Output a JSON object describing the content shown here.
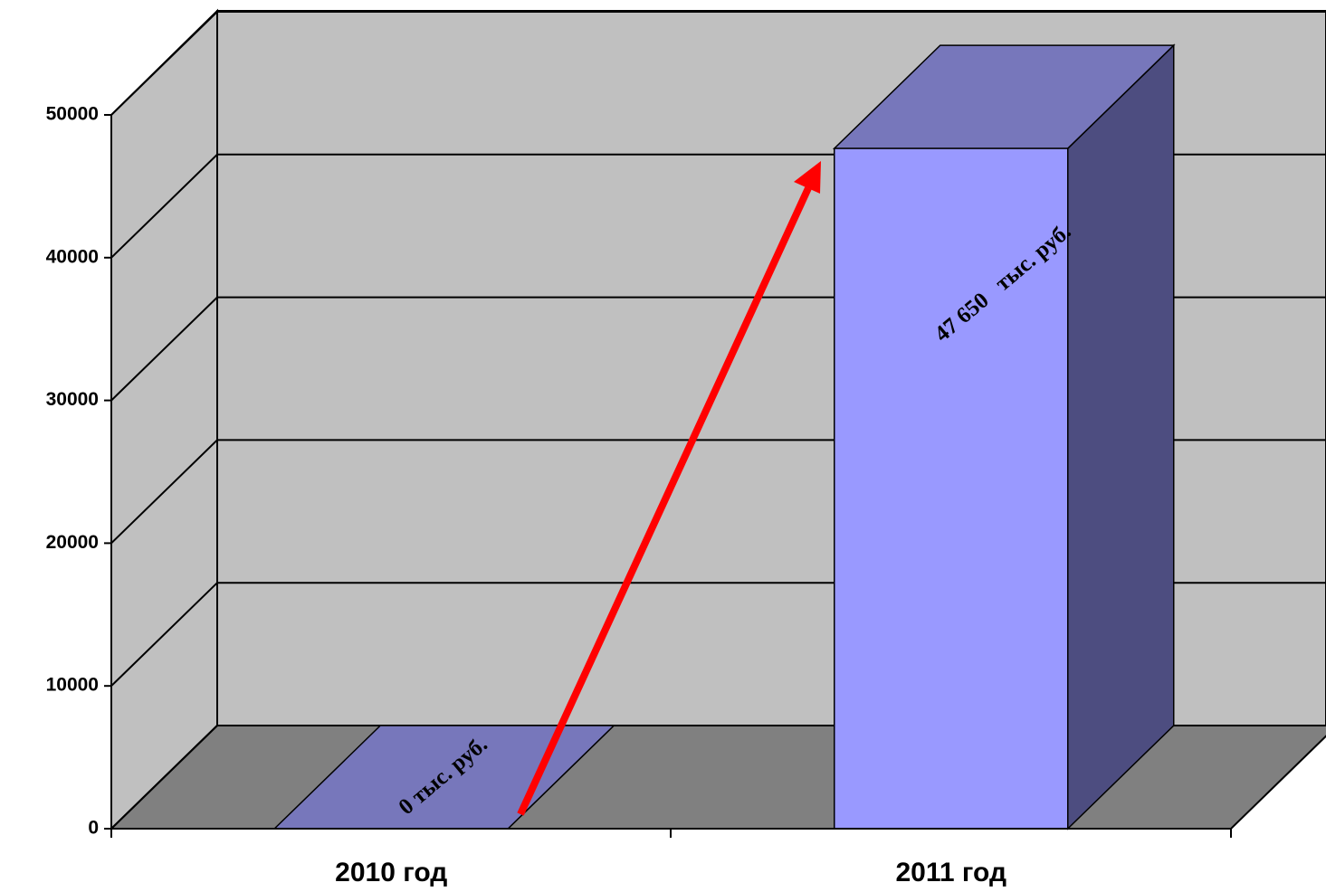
{
  "chart_data": {
    "type": "bar3d",
    "categories": [
      "2010 год",
      "2011 год"
    ],
    "values": [
      0,
      47650
    ],
    "value_labels": [
      "0 тыс. руб.",
      "47 650   тыс. руб."
    ],
    "color": "#9999ff",
    "ylim": [
      0,
      50000
    ],
    "yticks": [
      0,
      10000,
      20000,
      30000,
      40000,
      50000
    ],
    "grid": true
  }
}
